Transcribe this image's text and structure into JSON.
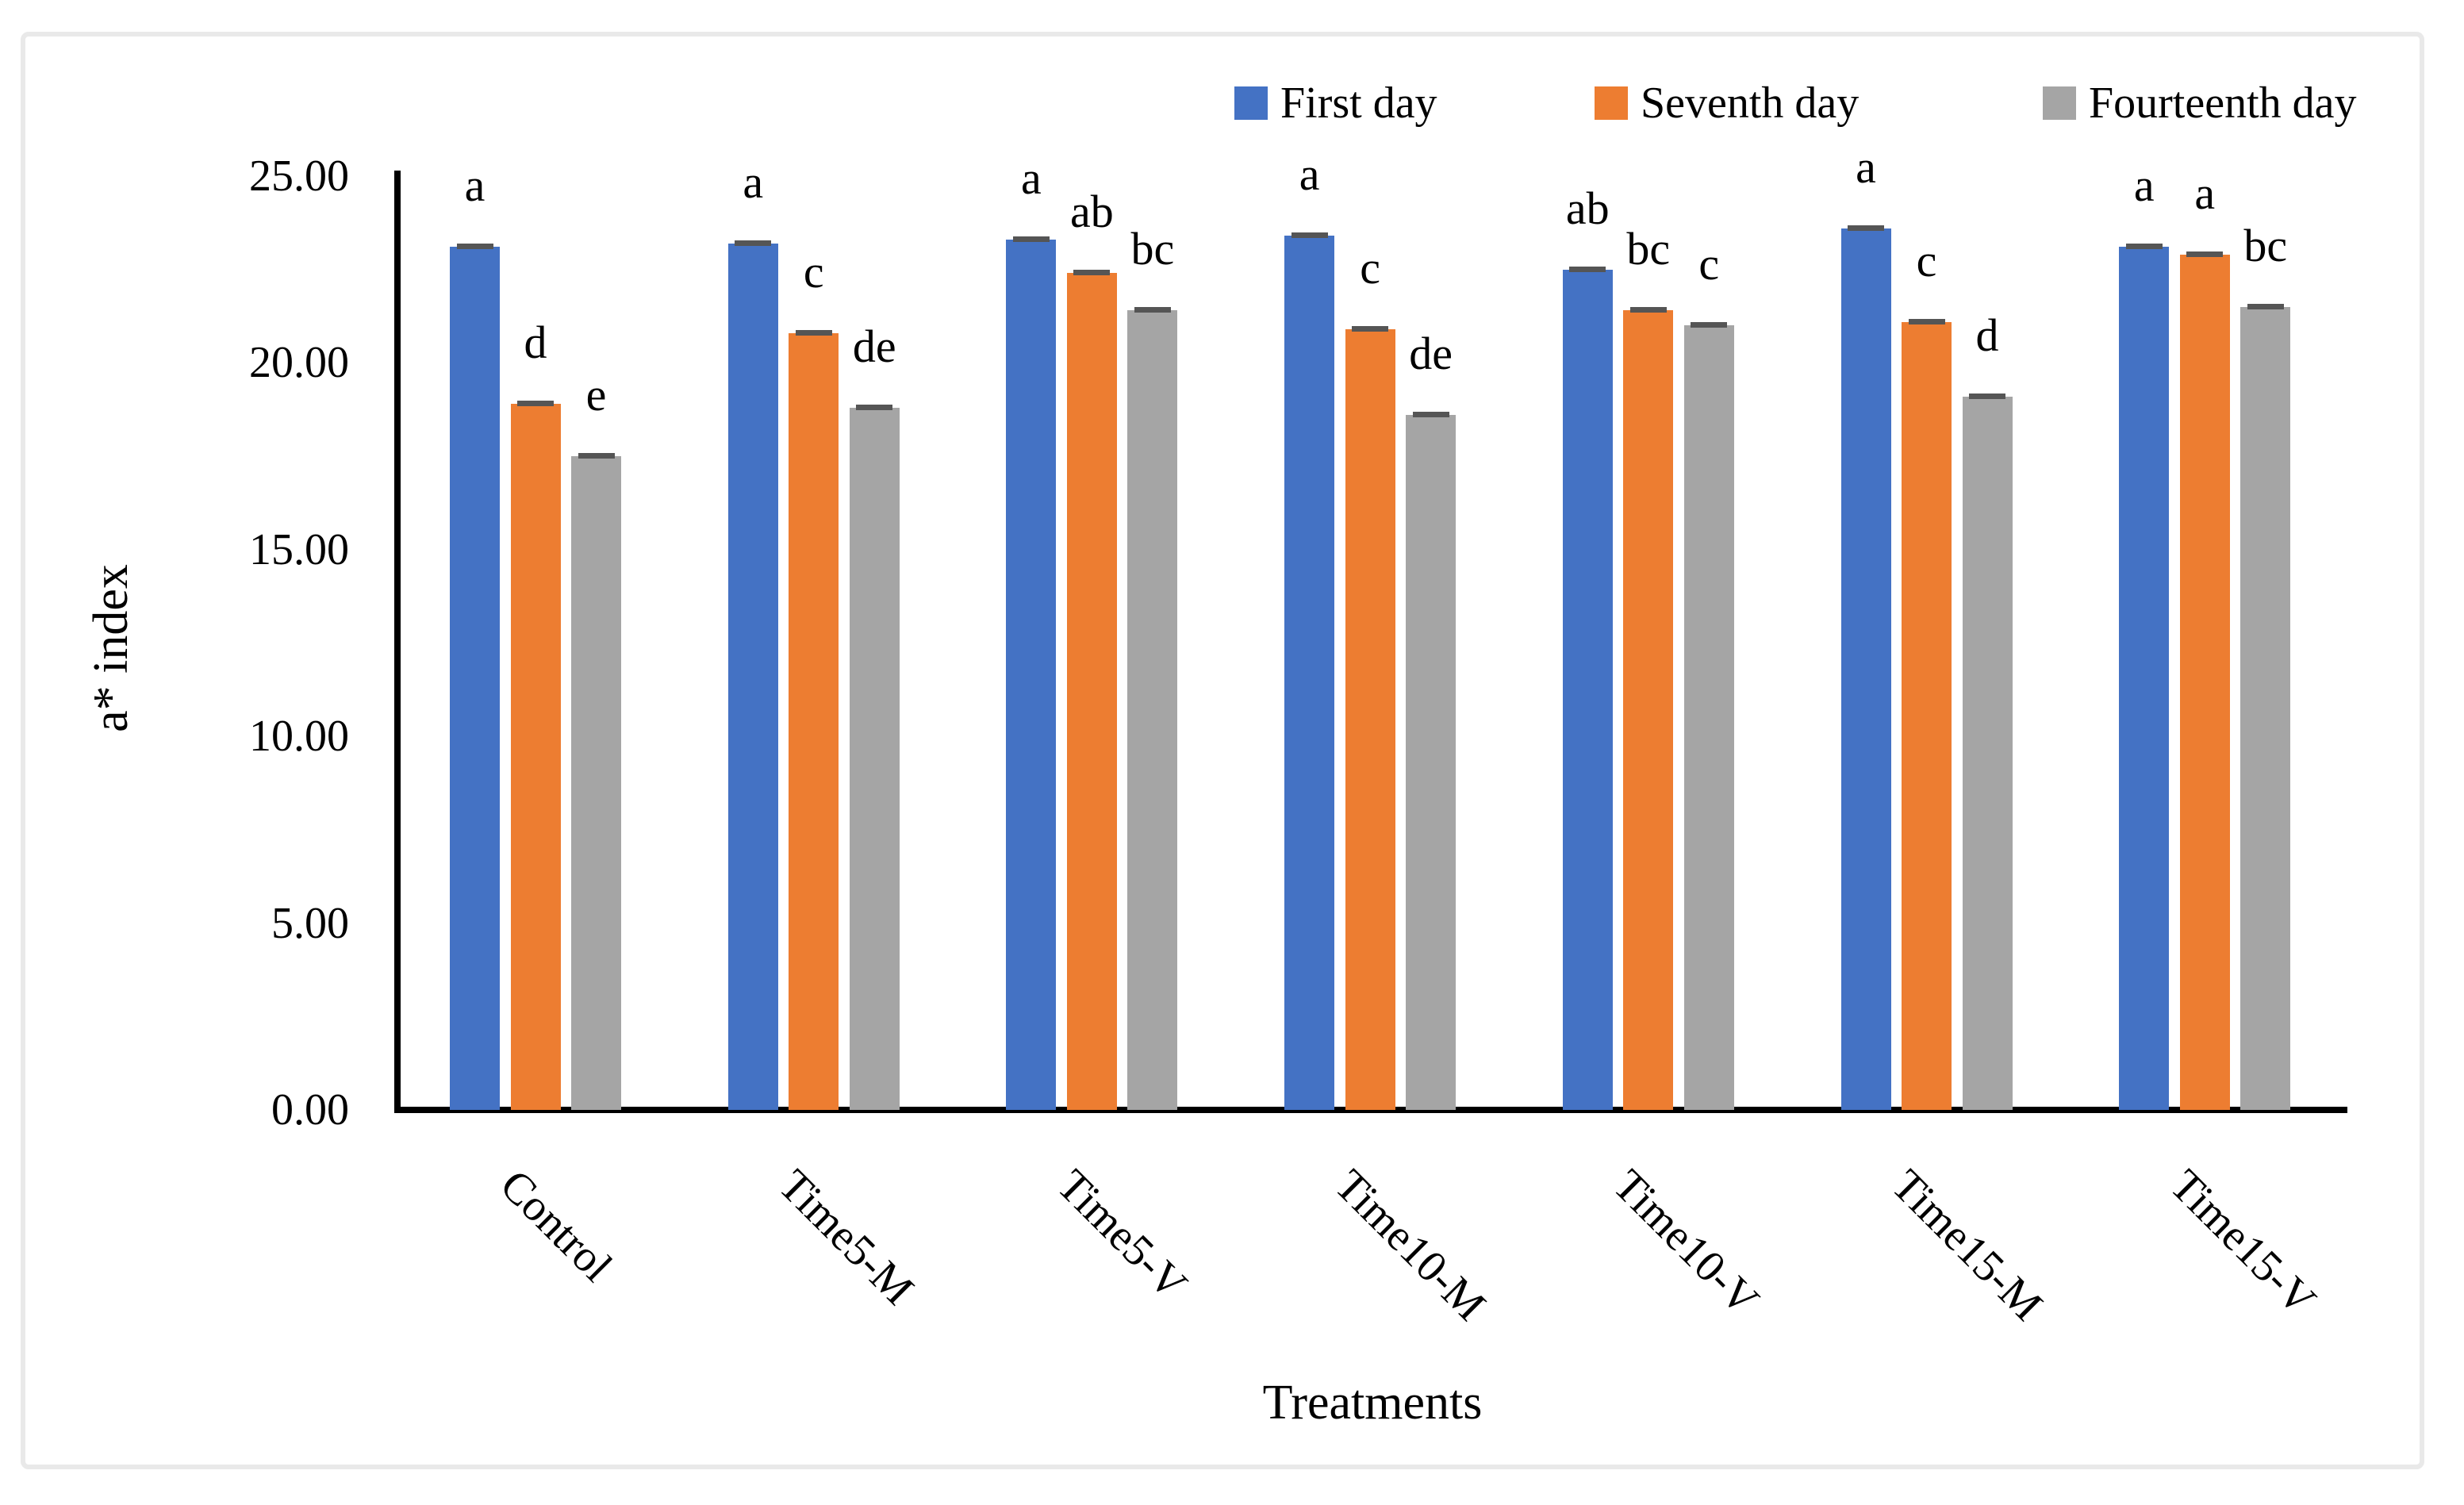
{
  "axes": {
    "y": {
      "title": "a* index",
      "tick_labels": [
        "0.00",
        "5.00",
        "10.00",
        "15.00",
        "20.00",
        "25.00"
      ],
      "tick_values": [
        0,
        5,
        10,
        15,
        20,
        25
      ],
      "min": 0,
      "max": 25
    },
    "x": {
      "title": "Treatments"
    }
  },
  "legend": {
    "items": [
      {
        "label": "First day",
        "color": "#4472C4"
      },
      {
        "label": "Seventh day",
        "color": "#ED7D31"
      },
      {
        "label": "Fourteenth day",
        "color": "#A5A5A5"
      }
    ]
  },
  "chart_data": {
    "type": "bar",
    "title": "",
    "xlabel": "Treatments",
    "ylabel": "a* index",
    "ylim": [
      0,
      25
    ],
    "grid": false,
    "legend_position": "top-right",
    "error_caps": true,
    "categories": [
      "Control",
      "Time5-M",
      "Time5-V",
      "Time10-M",
      "Time10-V",
      "Time15-M",
      "Time15-V"
    ],
    "series": [
      {
        "name": "First day",
        "color": "#4472C4",
        "values": [
          23.1,
          23.2,
          23.3,
          23.4,
          22.5,
          23.6,
          23.1
        ],
        "sig_letters": [
          "a",
          "a",
          "a",
          "a",
          "ab",
          "a",
          "a"
        ]
      },
      {
        "name": "Seventh day",
        "color": "#ED7D31",
        "values": [
          18.9,
          20.8,
          22.4,
          20.9,
          21.4,
          21.1,
          22.9
        ],
        "sig_letters": [
          "d",
          "c",
          "ab",
          "c",
          "bc",
          "c",
          "a"
        ]
      },
      {
        "name": "Fourteenth day",
        "color": "#A5A5A5",
        "values": [
          17.5,
          18.8,
          21.4,
          18.6,
          21.0,
          19.1,
          21.5
        ],
        "sig_letters": [
          "e",
          "de",
          "bc",
          "de",
          "c",
          "d",
          "bc"
        ]
      }
    ]
  }
}
